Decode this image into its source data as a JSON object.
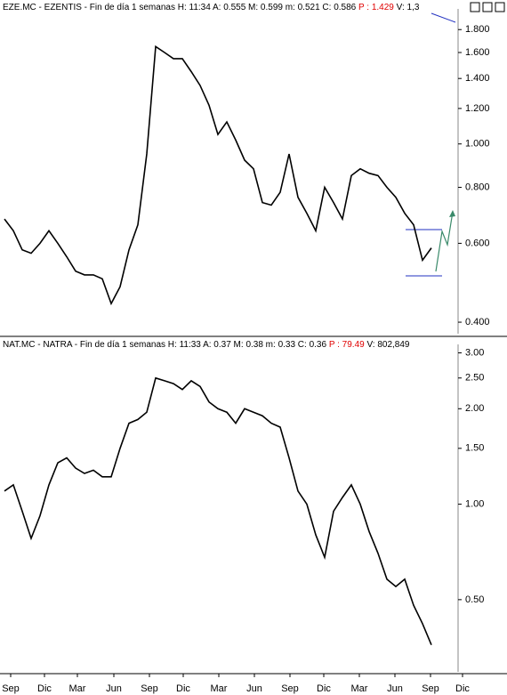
{
  "chart_data": [
    {
      "type": "line",
      "title": "EZE.MC - EZENTIS - Fin de día 1 semanas  H: 11:34  A: 0.555  M: 0.599  m: 0.521  C: 0.586",
      "price_label": "P : 1.429",
      "volume_label": "V: 1,3",
      "log_scale": true,
      "color": "#000000",
      "xlim": [
        -0.5,
        56.5
      ],
      "ylim": [
        0.377,
        1.93
      ],
      "yticks": [
        {
          "value": 1.8,
          "label": "1.800"
        },
        {
          "value": 1.6,
          "label": "1.600"
        },
        {
          "value": 1.4,
          "label": "1.400"
        },
        {
          "value": 1.2,
          "label": "1.200"
        },
        {
          "value": 1.0,
          "label": "1.000"
        },
        {
          "value": 0.8,
          "label": "0.800"
        },
        {
          "value": 0.6,
          "label": "0.600"
        },
        {
          "value": 0.4,
          "label": "0.400"
        }
      ],
      "values": [
        0.68,
        0.64,
        0.58,
        0.57,
        0.6,
        0.64,
        0.6,
        0.56,
        0.52,
        0.51,
        0.51,
        0.5,
        0.44,
        0.48,
        0.58,
        0.66,
        0.95,
        1.65,
        1.6,
        1.55,
        1.55,
        1.45,
        1.35,
        1.22,
        1.05,
        1.12,
        1.02,
        0.92,
        0.88,
        0.74,
        0.73,
        0.78,
        0.95,
        0.76,
        0.7,
        0.64,
        0.8,
        0.74,
        0.68,
        0.85,
        0.88,
        0.86,
        0.85,
        0.8,
        0.76,
        0.7,
        0.66,
        0.55,
        0.586
      ]
    },
    {
      "type": "line",
      "title": "NAT.MC - NATRA - Fin de día 1 semanas  H: 11:33  A: 0.37  M: 0.38  m: 0.33  C: 0.36",
      "price_label": "P : 79.49",
      "volume_label": "V: 802,849",
      "log_scale": true,
      "color": "#000000",
      "xlim": [
        -0.5,
        56.5
      ],
      "ylim": [
        0.296,
        3.03
      ],
      "yticks": [
        {
          "value": 3.0,
          "label": "3.00"
        },
        {
          "value": 2.5,
          "label": "2.50"
        },
        {
          "value": 2.0,
          "label": "2.00"
        },
        {
          "value": 1.5,
          "label": "1.50"
        },
        {
          "value": 1.0,
          "label": "1.00"
        },
        {
          "value": 0.5,
          "label": "0.50"
        }
      ],
      "xticks": [
        {
          "value": 0.7,
          "label": "Sep"
        },
        {
          "value": 4.5,
          "label": "Dic"
        },
        {
          "value": 8.2,
          "label": "Mar"
        },
        {
          "value": 12.3,
          "label": "Jun"
        },
        {
          "value": 16.3,
          "label": "Sep"
        },
        {
          "value": 20.1,
          "label": "Dic"
        },
        {
          "value": 24.1,
          "label": "Mar"
        },
        {
          "value": 28.1,
          "label": "Jun"
        },
        {
          "value": 32.1,
          "label": "Sep"
        },
        {
          "value": 35.9,
          "label": "Dic"
        },
        {
          "value": 39.9,
          "label": "Mar"
        },
        {
          "value": 43.9,
          "label": "Jun"
        },
        {
          "value": 47.9,
          "label": "Sep"
        },
        {
          "value": 51.5,
          "label": "Dic"
        }
      ],
      "values": [
        1.1,
        1.15,
        0.95,
        0.78,
        0.92,
        1.15,
        1.35,
        1.4,
        1.3,
        1.25,
        1.28,
        1.22,
        1.22,
        1.5,
        1.8,
        1.85,
        1.95,
        2.5,
        2.45,
        2.4,
        2.3,
        2.45,
        2.35,
        2.1,
        2.0,
        1.95,
        1.8,
        2.0,
        1.95,
        1.9,
        1.8,
        1.75,
        1.4,
        1.1,
        1.0,
        0.8,
        0.68,
        0.95,
        1.05,
        1.15,
        1.0,
        0.82,
        0.7,
        0.58,
        0.55,
        0.58,
        0.48,
        0.42,
        0.36
      ]
    }
  ]
}
